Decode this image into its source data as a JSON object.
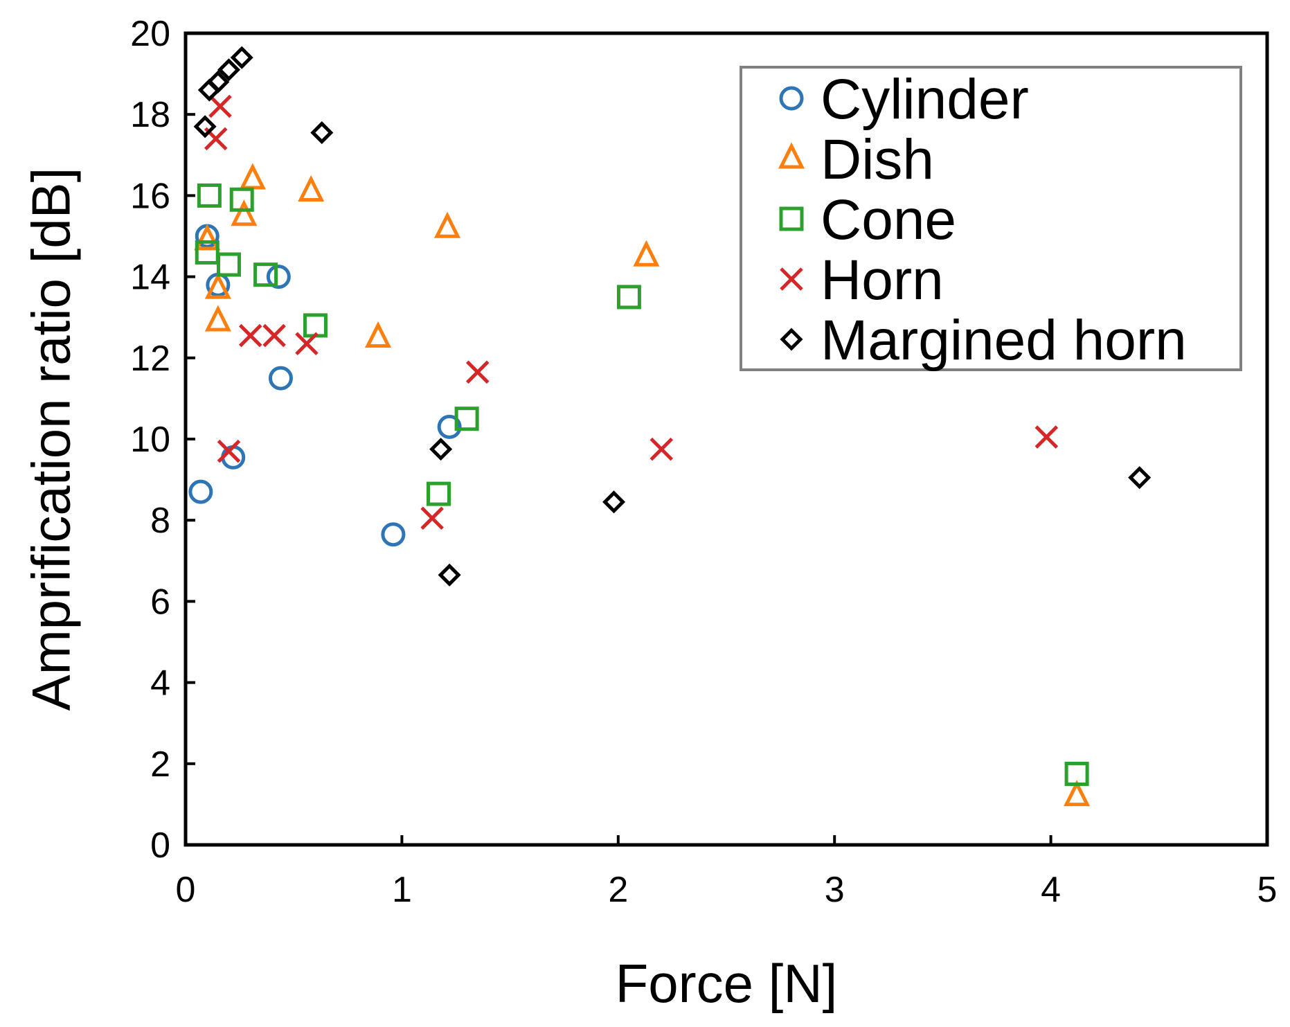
{
  "chart_data": {
    "type": "scatter",
    "title": "",
    "xlabel": "Force [N]",
    "ylabel": "Amprification ratio [dB]",
    "xlim": [
      0,
      5
    ],
    "ylim": [
      0,
      20
    ],
    "x_ticks": [
      0,
      1,
      2,
      3,
      4,
      5
    ],
    "y_ticks": [
      0,
      2,
      4,
      6,
      8,
      10,
      12,
      14,
      16,
      18,
      20
    ],
    "grid": false,
    "legend_position": "top-right",
    "series": [
      {
        "name": "Cylinder",
        "marker": "circle",
        "color": "#2e75b6",
        "points": [
          [
            0.07,
            8.7
          ],
          [
            0.1,
            15.0
          ],
          [
            0.15,
            13.8
          ],
          [
            0.22,
            9.55
          ],
          [
            0.43,
            14.0
          ],
          [
            0.44,
            11.5
          ],
          [
            0.96,
            7.65
          ],
          [
            1.22,
            10.3
          ]
        ]
      },
      {
        "name": "Dish",
        "marker": "triangle",
        "color": "#ff7f0e",
        "points": [
          [
            0.1,
            14.9
          ],
          [
            0.15,
            13.7
          ],
          [
            0.15,
            12.9
          ],
          [
            0.27,
            15.5
          ],
          [
            0.31,
            16.4
          ],
          [
            0.58,
            16.1
          ],
          [
            0.89,
            12.5
          ],
          [
            1.21,
            15.2
          ],
          [
            2.13,
            14.5
          ],
          [
            4.12,
            1.2
          ]
        ]
      },
      {
        "name": "Cone",
        "marker": "square",
        "color": "#2ca02c",
        "points": [
          [
            0.11,
            16.0
          ],
          [
            0.1,
            14.6
          ],
          [
            0.2,
            14.3
          ],
          [
            0.26,
            15.9
          ],
          [
            0.37,
            14.05
          ],
          [
            0.6,
            12.8
          ],
          [
            1.17,
            8.65
          ],
          [
            1.3,
            10.5
          ],
          [
            2.05,
            13.5
          ],
          [
            4.12,
            1.75
          ]
        ]
      },
      {
        "name": "Horn",
        "marker": "x",
        "color": "#d62728",
        "points": [
          [
            0.14,
            17.4
          ],
          [
            0.16,
            18.2
          ],
          [
            0.2,
            9.7
          ],
          [
            0.3,
            12.55
          ],
          [
            0.41,
            12.55
          ],
          [
            0.56,
            12.35
          ],
          [
            1.14,
            8.05
          ],
          [
            1.35,
            11.65
          ],
          [
            2.2,
            9.75
          ],
          [
            3.98,
            10.05
          ]
        ]
      },
      {
        "name": "Margined horn",
        "marker": "diamond",
        "color": "#000000",
        "points": [
          [
            0.09,
            17.7
          ],
          [
            0.11,
            18.6
          ],
          [
            0.15,
            18.8
          ],
          [
            0.2,
            19.1
          ],
          [
            0.26,
            19.4
          ],
          [
            0.63,
            17.55
          ],
          [
            1.18,
            9.75
          ],
          [
            1.22,
            6.65
          ],
          [
            1.98,
            8.45
          ],
          [
            4.41,
            9.05
          ]
        ]
      }
    ]
  }
}
